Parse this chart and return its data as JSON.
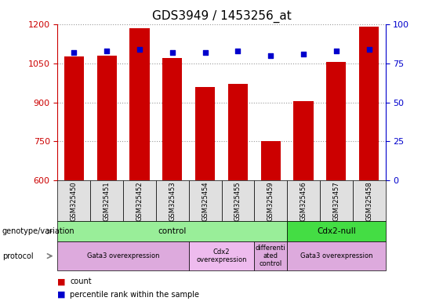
{
  "title": "GDS3949 / 1453256_at",
  "samples": [
    "GSM325450",
    "GSM325451",
    "GSM325452",
    "GSM325453",
    "GSM325454",
    "GSM325455",
    "GSM325459",
    "GSM325456",
    "GSM325457",
    "GSM325458"
  ],
  "counts": [
    1075,
    1080,
    1185,
    1070,
    960,
    970,
    750,
    905,
    1055,
    1190
  ],
  "percentile_ranks": [
    82,
    83,
    84,
    82,
    82,
    83,
    80,
    81,
    83,
    84
  ],
  "bar_color": "#cc0000",
  "dot_color": "#0000cc",
  "ylim_left": [
    600,
    1200
  ],
  "ylim_right": [
    0,
    100
  ],
  "yticks_left": [
    600,
    750,
    900,
    1050,
    1200
  ],
  "yticks_right": [
    0,
    25,
    50,
    75,
    100
  ],
  "grid_color": "#999999",
  "genotype_groups": [
    {
      "label": "control",
      "start": 0,
      "end": 7,
      "color": "#99ee99"
    },
    {
      "label": "Cdx2-null",
      "start": 7,
      "end": 10,
      "color": "#44dd44"
    }
  ],
  "protocol_groups": [
    {
      "label": "Gata3 overexpression",
      "start": 0,
      "end": 4,
      "color": "#ddaadd"
    },
    {
      "label": "Cdx2\noverexpression",
      "start": 4,
      "end": 6,
      "color": "#eebbee"
    },
    {
      "label": "differenti\nated\ncontrol",
      "start": 6,
      "end": 7,
      "color": "#ddaadd"
    },
    {
      "label": "Gata3 overexpression",
      "start": 7,
      "end": 10,
      "color": "#ddaadd"
    }
  ],
  "left_axis_color": "#cc0000",
  "right_axis_color": "#0000cc",
  "title_fontsize": 11,
  "tick_fontsize": 8,
  "label_fontsize": 8,
  "sample_box_color": "#e0e0e0",
  "arrow_color": "gray",
  "genotype_label": "genotype/variation",
  "protocol_label": "protocol"
}
